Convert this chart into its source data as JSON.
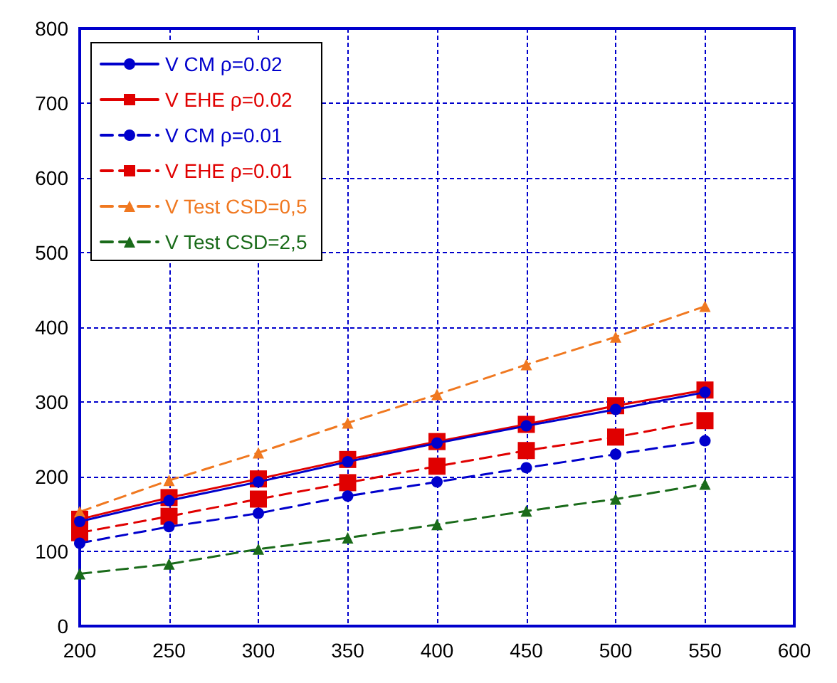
{
  "chart_data": {
    "type": "line",
    "x": [
      200,
      250,
      300,
      350,
      400,
      450,
      500,
      550
    ],
    "xlim": [
      200,
      600
    ],
    "xticks": [
      200,
      250,
      300,
      350,
      400,
      450,
      500,
      550,
      600
    ],
    "ylim": [
      0,
      800
    ],
    "yticks": [
      0,
      100,
      200,
      300,
      400,
      500,
      600,
      700,
      800
    ],
    "grid": true,
    "legend": "top left",
    "series": [
      {
        "name": "V CM ρ=0.02",
        "color": "#0000cc",
        "marker": "circle",
        "line_style": "solid",
        "values": [
          140,
          168,
          193,
          220,
          245,
          268,
          290,
          313
        ]
      },
      {
        "name": "V EHE ρ=0.02",
        "color": "#e00000",
        "marker": "square",
        "line_style": "solid",
        "values": [
          143,
          172,
          197,
          223,
          247,
          270,
          295,
          316
        ]
      },
      {
        "name": "V CM ρ=0.01",
        "color": "#0000cc",
        "marker": "circle",
        "line_style": "dashed",
        "values": [
          111,
          133,
          151,
          174,
          193,
          212,
          230,
          248
        ]
      },
      {
        "name": "V EHE ρ=0.01",
        "color": "#e00000",
        "marker": "square",
        "line_style": "dashed",
        "values": [
          125,
          147,
          170,
          192,
          214,
          235,
          253,
          275
        ]
      },
      {
        "name": "V Test CSD=0,5",
        "color": "#f07820",
        "marker": "triangle",
        "line_style": "dashed",
        "values": [
          153,
          195,
          232,
          272,
          310,
          350,
          387,
          428
        ]
      },
      {
        "name": "V Test CSD=2,5",
        "color": "#1a6b1a",
        "marker": "triangle",
        "line_style": "dashed",
        "values": [
          70,
          83,
          103,
          118,
          136,
          154,
          170,
          190
        ]
      }
    ]
  }
}
